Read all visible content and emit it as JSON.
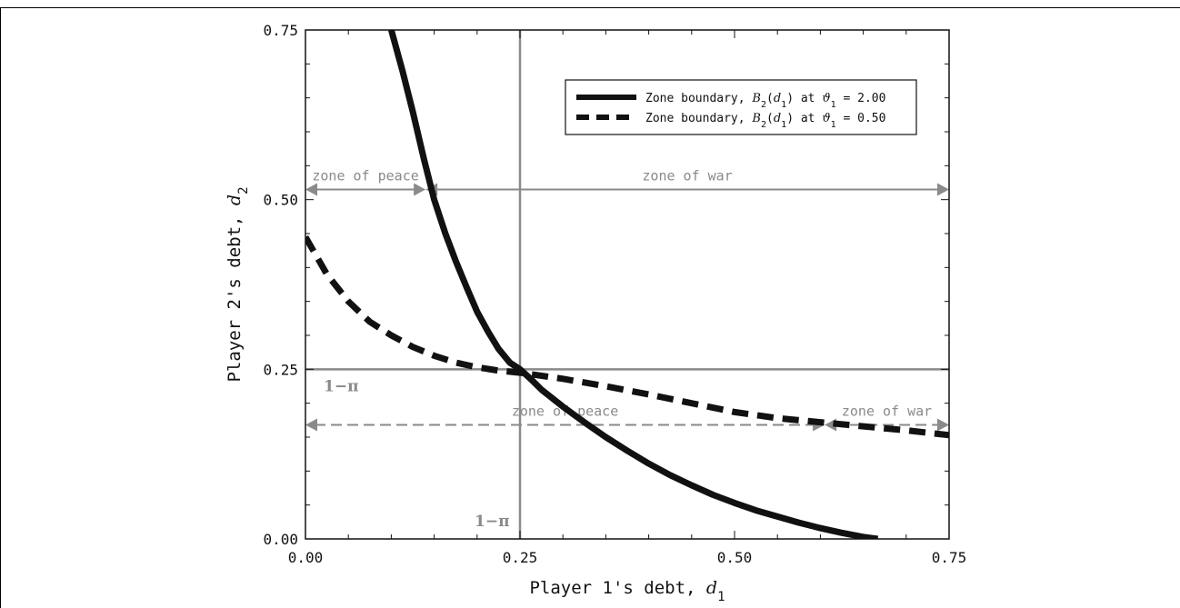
{
  "chart_data": {
    "type": "line",
    "xlabel": "Player 1's debt, ",
    "xlabel_var": "d",
    "xlabel_sub": "1",
    "ylabel": "Player 2's debt, ",
    "ylabel_var": "d",
    "ylabel_sub": "2",
    "xlim": [
      0,
      0.75
    ],
    "ylim": [
      0,
      0.75
    ],
    "xticks": [
      {
        "value": 0.0,
        "label": "0.00"
      },
      {
        "value": 0.25,
        "label": "0.25"
      },
      {
        "value": 0.5,
        "label": "0.50"
      },
      {
        "value": 0.75,
        "label": "0.75"
      }
    ],
    "yticks": [
      {
        "value": 0.0,
        "label": "0.00"
      },
      {
        "value": 0.25,
        "label": "0.25"
      },
      {
        "value": 0.5,
        "label": "0.50"
      },
      {
        "value": 0.75,
        "label": "0.75"
      }
    ],
    "grid": false,
    "legend_position": "top-right",
    "series": [
      {
        "name": "Zone boundary, B2(d1) at ϑ1 = 2.00",
        "legend_prefix": "Zone boundary, ",
        "legend_fn": "B",
        "legend_fn_sub": "2",
        "legend_arg": "d",
        "legend_arg_sub": "1",
        "legend_mid": " at ",
        "legend_param": "ϑ",
        "legend_param_sub": "1",
        "legend_value": " = 2.00",
        "style": "solid",
        "color": "#111111",
        "points": [
          [
            0.1,
            0.75
          ],
          [
            0.113,
            0.69
          ],
          [
            0.125,
            0.63
          ],
          [
            0.138,
            0.56
          ],
          [
            0.15,
            0.5
          ],
          [
            0.163,
            0.45
          ],
          [
            0.175,
            0.41
          ],
          [
            0.188,
            0.37
          ],
          [
            0.2,
            0.335
          ],
          [
            0.213,
            0.305
          ],
          [
            0.225,
            0.28
          ],
          [
            0.238,
            0.26
          ],
          [
            0.25,
            0.25
          ],
          [
            0.263,
            0.235
          ],
          [
            0.275,
            0.22
          ],
          [
            0.3,
            0.195
          ],
          [
            0.325,
            0.172
          ],
          [
            0.35,
            0.15
          ],
          [
            0.375,
            0.13
          ],
          [
            0.4,
            0.111
          ],
          [
            0.425,
            0.094
          ],
          [
            0.45,
            0.079
          ],
          [
            0.475,
            0.065
          ],
          [
            0.5,
            0.053
          ],
          [
            0.525,
            0.042
          ],
          [
            0.55,
            0.033
          ],
          [
            0.575,
            0.024
          ],
          [
            0.6,
            0.016
          ],
          [
            0.625,
            0.009
          ],
          [
            0.65,
            0.003
          ],
          [
            0.667,
            0.0
          ]
        ]
      },
      {
        "name": "Zone boundary, B2(d1) at ϑ1 = 0.50",
        "legend_prefix": "Zone boundary, ",
        "legend_fn": "B",
        "legend_fn_sub": "2",
        "legend_arg": "d",
        "legend_arg_sub": "1",
        "legend_mid": " at ",
        "legend_param": "ϑ",
        "legend_param_sub": "1",
        "legend_value": " = 0.50",
        "style": "dashed",
        "color": "#111111",
        "points": [
          [
            0.0,
            0.445
          ],
          [
            0.025,
            0.39
          ],
          [
            0.05,
            0.35
          ],
          [
            0.075,
            0.32
          ],
          [
            0.1,
            0.3
          ],
          [
            0.125,
            0.283
          ],
          [
            0.15,
            0.27
          ],
          [
            0.175,
            0.26
          ],
          [
            0.2,
            0.253
          ],
          [
            0.225,
            0.248
          ],
          [
            0.25,
            0.245
          ],
          [
            0.3,
            0.236
          ],
          [
            0.35,
            0.225
          ],
          [
            0.4,
            0.213
          ],
          [
            0.45,
            0.2
          ],
          [
            0.5,
            0.187
          ],
          [
            0.55,
            0.178
          ],
          [
            0.6,
            0.172
          ],
          [
            0.65,
            0.166
          ],
          [
            0.7,
            0.16
          ],
          [
            0.75,
            0.153
          ]
        ]
      }
    ],
    "reference_lines": {
      "vertical": {
        "x": 0.25,
        "label": "1−π"
      },
      "horizontal": {
        "y": 0.25,
        "label": "1−π"
      }
    },
    "zones": [
      {
        "label": "zone of peace",
        "y": 0.515,
        "x_from": 0.0,
        "x_to": 0.14,
        "style": "solid"
      },
      {
        "label": "zone of war",
        "y": 0.515,
        "x_from": 0.14,
        "x_to": 0.75,
        "style": "solid"
      },
      {
        "label": "zone of peace",
        "y": 0.168,
        "x_from": 0.0,
        "x_to": 0.605,
        "style": "dashed"
      },
      {
        "label": "zone of war",
        "y": 0.168,
        "x_from": 0.605,
        "x_to": 0.75,
        "style": "dashed"
      }
    ],
    "colors": {
      "curve": "#111111",
      "reference": "#8a8a8a",
      "zone": "#8a8a8a"
    }
  }
}
